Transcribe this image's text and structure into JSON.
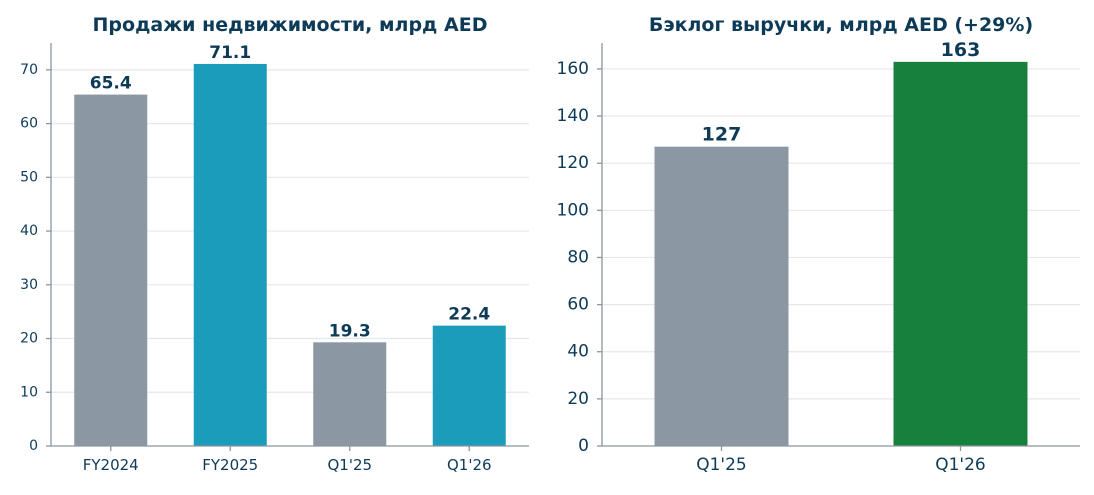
{
  "chart_data": [
    {
      "type": "bar",
      "title": "Продажи недвижимости, млрд AED",
      "categories": [
        "FY2024",
        "FY2025",
        "Q1'25",
        "Q1'26"
      ],
      "values": [
        65.4,
        71.1,
        19.3,
        22.4
      ],
      "value_labels": [
        "65.4",
        "71.1",
        "19.3",
        "22.4"
      ],
      "colors": [
        "#8b97a2",
        "#1b9cba",
        "#8b97a2",
        "#1b9cba"
      ],
      "ylim": [
        0,
        75
      ],
      "yticks": [
        0,
        10,
        20,
        30,
        40,
        50,
        60,
        70
      ],
      "grid": true,
      "xlabel": "",
      "ylabel": ""
    },
    {
      "type": "bar",
      "title": "Бэклог выручки, млрд AED (+29%)",
      "categories": [
        "Q1'25",
        "Q1'26"
      ],
      "values": [
        127,
        163
      ],
      "value_labels": [
        "127",
        "163"
      ],
      "colors": [
        "#8b97a2",
        "#17803d"
      ],
      "ylim": [
        0,
        171
      ],
      "yticks": [
        0,
        20,
        40,
        60,
        80,
        100,
        120,
        140,
        160
      ],
      "grid": true,
      "xlabel": "",
      "ylabel": ""
    }
  ]
}
